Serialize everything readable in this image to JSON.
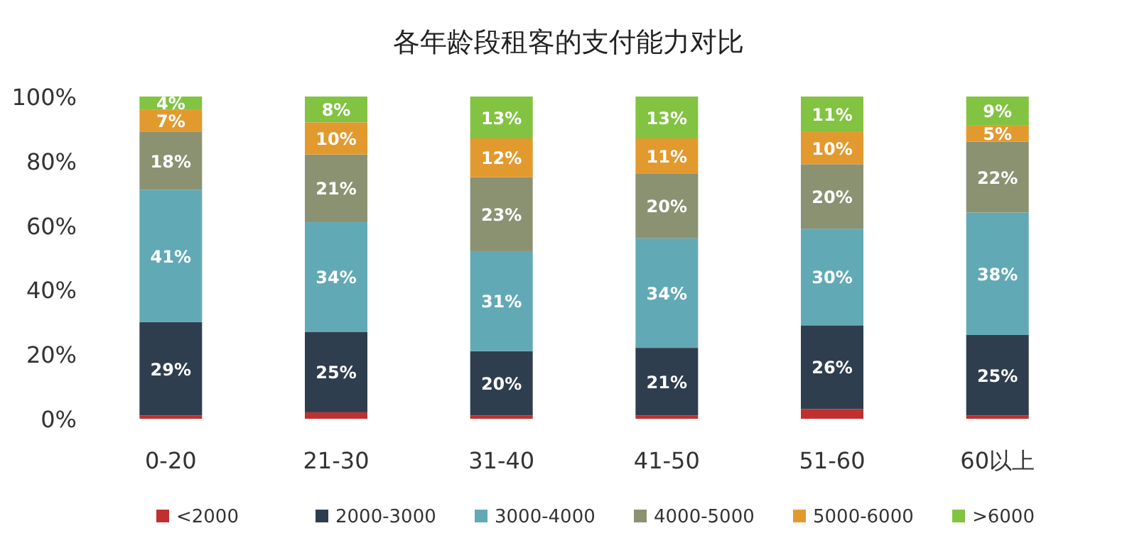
{
  "chart_data": {
    "type": "bar",
    "title": "各年龄段租客的支付能力对比",
    "stacked": true,
    "legend": "bottom",
    "categories": [
      "0-20",
      "21-30",
      "31-40",
      "41-50",
      "51-60",
      "60以上"
    ],
    "ylim": [
      0,
      100
    ],
    "yticks": [
      {
        "value": 0,
        "label": "0%"
      },
      {
        "value": 20,
        "label": "20%"
      },
      {
        "value": 40,
        "label": "40%"
      },
      {
        "value": 60,
        "label": "60%"
      },
      {
        "value": 80,
        "label": "80%"
      },
      {
        "value": 100,
        "label": "100%"
      }
    ],
    "series": [
      {
        "name": "<2000",
        "color": "#c0302e",
        "values": [
          1,
          2,
          1,
          1,
          3,
          1
        ],
        "value_labels": [
          null,
          null,
          null,
          null,
          null,
          null
        ]
      },
      {
        "name": "2000-3000",
        "color": "#2f3e4e",
        "values": [
          29,
          25,
          20,
          21,
          26,
          25
        ],
        "value_labels": [
          "29%",
          "25%",
          "20%",
          "21%",
          "26%",
          "25%"
        ]
      },
      {
        "name": "3000-4000",
        "color": "#62a9b6",
        "values": [
          41,
          34,
          31,
          34,
          30,
          38
        ],
        "value_labels": [
          "41%",
          "34%",
          "31%",
          "34%",
          "30%",
          "38%"
        ]
      },
      {
        "name": "4000-5000",
        "color": "#8b9272",
        "values": [
          18,
          21,
          23,
          20,
          20,
          22
        ],
        "value_labels": [
          "18%",
          "21%",
          "23%",
          "20%",
          "20%",
          "22%"
        ]
      },
      {
        "name": "5000-6000",
        "color": "#e29a2f",
        "values": [
          7,
          10,
          12,
          11,
          10,
          5
        ],
        "value_labels": [
          "7%",
          "10%",
          "12%",
          "11%",
          "10%",
          "5%"
        ]
      },
      {
        "name": ">6000",
        "color": "#82c341",
        "values": [
          4,
          8,
          13,
          13,
          11,
          9
        ],
        "value_labels": [
          "4%",
          "8%",
          "13%",
          "13%",
          "11%",
          "9%"
        ]
      }
    ]
  }
}
